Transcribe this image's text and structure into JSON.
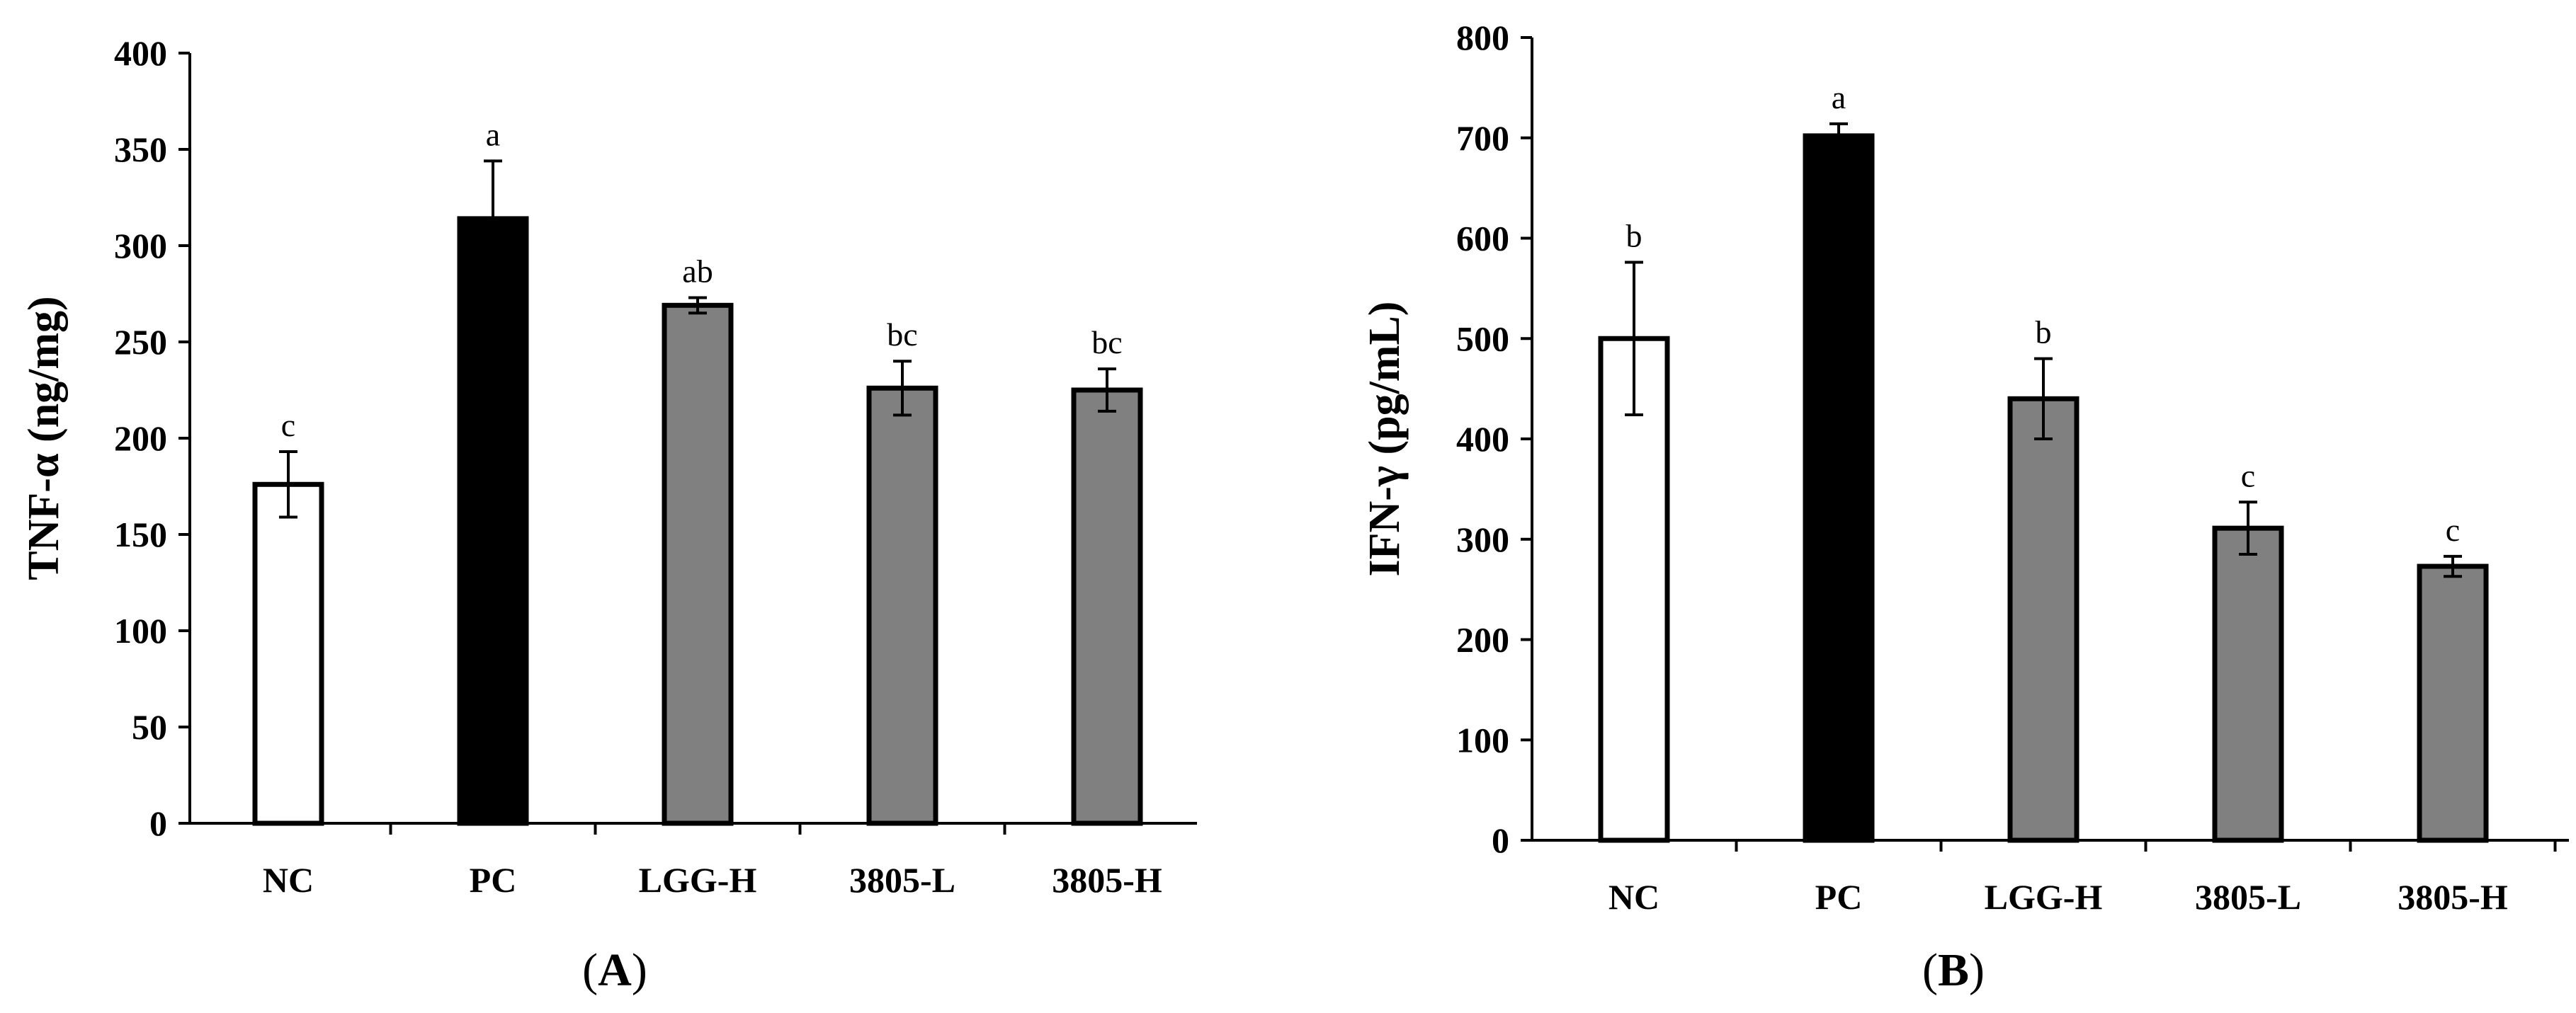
{
  "chart_data": [
    {
      "type": "bar",
      "panel_label": "A",
      "ylabel": "TNF-α (ng/mg)",
      "ylim": [
        0,
        400
      ],
      "ytick_step": 50,
      "categories": [
        "NC",
        "PC",
        "LGG-H",
        "3805-L",
        "3805-H"
      ],
      "values": [
        176,
        314,
        269,
        226,
        225
      ],
      "errors": [
        17,
        30,
        4,
        14,
        11
      ],
      "significance": [
        "c",
        "a",
        "ab",
        "bc",
        "bc"
      ],
      "bar_colors": [
        "#ffffff",
        "#000000",
        "#808080",
        "#808080",
        "#808080"
      ],
      "grid": false,
      "legend": "none"
    },
    {
      "type": "bar",
      "panel_label": "B",
      "ylabel": "IFN-γ (pg/mL)",
      "ylim": [
        0,
        800
      ],
      "ytick_step": 100,
      "categories": [
        "NC",
        "PC",
        "LGG-H",
        "3805-L",
        "3805-H"
      ],
      "values": [
        500,
        702,
        440,
        311,
        273
      ],
      "errors": [
        76,
        12,
        40,
        26,
        10
      ],
      "significance": [
        "b",
        "a",
        "b",
        "c",
        "c"
      ],
      "bar_colors": [
        "#ffffff",
        "#000000",
        "#808080",
        "#808080",
        "#808080"
      ],
      "grid": false,
      "legend": "none"
    }
  ]
}
